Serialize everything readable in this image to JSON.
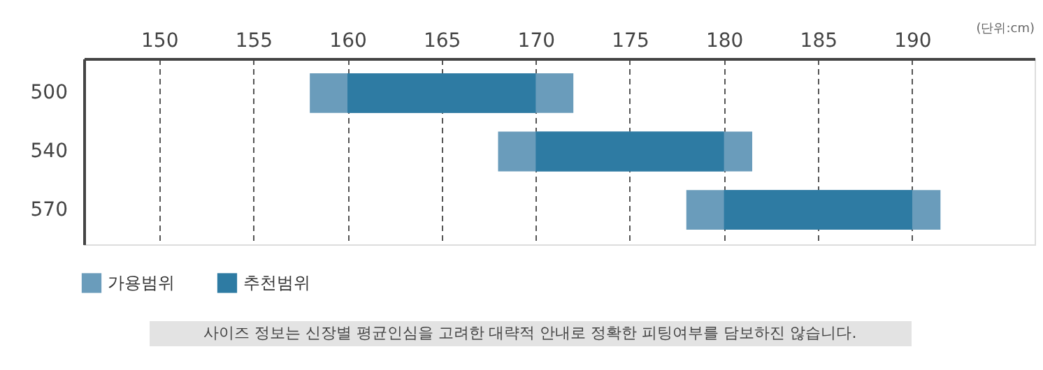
{
  "chart_data": {
    "type": "bar",
    "orientation": "horizontal",
    "categories": [
      "500",
      "540",
      "570"
    ],
    "series": [
      {
        "name": "가용범위",
        "color": "#6a9cbb",
        "base": [
          158,
          168,
          178
        ],
        "values": [
          14,
          13.5,
          13.5
        ]
      },
      {
        "name": "추천범위",
        "color": "#2e7ba3",
        "base": [
          160,
          170,
          180
        ],
        "values": [
          10,
          10,
          10
        ]
      }
    ],
    "xlim": [
      146,
      196.5
    ],
    "xticks": [
      150,
      155,
      160,
      165,
      170,
      175,
      180,
      185,
      190
    ],
    "grid": "x",
    "legend": "bottom left",
    "annotations": [
      "(단위:cm)",
      "사이즈 정보는 신장별 평균인심을 고려한 대략적 안내로 정확한 피팅여부를 담보하진 않습니다."
    ]
  }
}
